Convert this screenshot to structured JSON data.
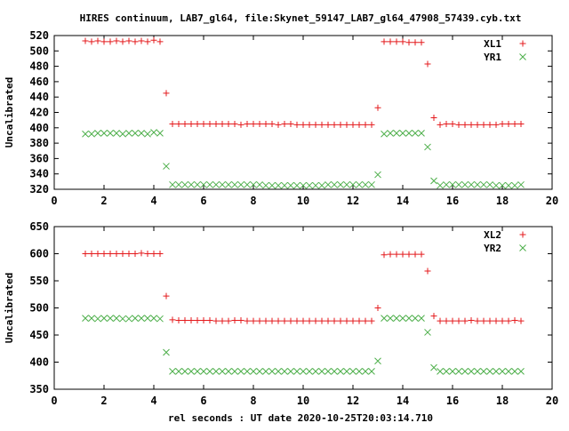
{
  "title": "HIRES continuum, LAB7_gl64, file:Skynet_59147_LAB7_gl64_47908_57439.cyb.txt",
  "xlabel": "rel seconds : UT date 2020-10-25T20:03:14.710",
  "chart_data": [
    {
      "type": "scatter",
      "ylabel": "Uncalibrated",
      "xlim": [
        0,
        20
      ],
      "ylim": [
        320,
        520
      ],
      "xticks": [
        0,
        2,
        4,
        6,
        8,
        10,
        12,
        14,
        16,
        18,
        20
      ],
      "yticks": [
        320,
        340,
        360,
        380,
        400,
        420,
        440,
        460,
        480,
        500,
        520
      ],
      "legend_position": "top-right",
      "series": [
        {
          "name": "XL1",
          "marker": "plus",
          "color": "#e41a1c",
          "x": [
            1.25,
            1.5,
            1.75,
            2.0,
            2.25,
            2.5,
            2.75,
            3.0,
            3.25,
            3.5,
            3.75,
            4.0,
            4.25,
            4.5,
            4.75,
            5.0,
            5.25,
            5.5,
            5.75,
            6.0,
            6.25,
            6.5,
            6.75,
            7.0,
            7.25,
            7.5,
            7.75,
            8.0,
            8.25,
            8.5,
            8.75,
            9.0,
            9.25,
            9.5,
            9.75,
            10.0,
            10.25,
            10.5,
            10.75,
            11.0,
            11.25,
            11.5,
            11.75,
            12.0,
            12.25,
            12.5,
            12.75,
            13.0,
            13.25,
            13.5,
            13.75,
            14.0,
            14.25,
            14.5,
            14.75,
            15.0,
            15.25,
            15.5,
            15.75,
            16.0,
            16.25,
            16.5,
            16.75,
            17.0,
            17.25,
            17.5,
            17.75,
            18.0,
            18.25,
            18.5,
            18.75
          ],
          "y": [
            513,
            512,
            513,
            512,
            512,
            513,
            512,
            513,
            512,
            513,
            512,
            514,
            512,
            445,
            405,
            405,
            405,
            405,
            405,
            405,
            405,
            405,
            405,
            405,
            405,
            404,
            405,
            405,
            405,
            405,
            405,
            404,
            405,
            405,
            404,
            404,
            404,
            404,
            404,
            404,
            404,
            404,
            404,
            404,
            404,
            404,
            404,
            426,
            512,
            512,
            512,
            512,
            511,
            511,
            511,
            483,
            413,
            404,
            405,
            405,
            404,
            404,
            404,
            404,
            404,
            404,
            404,
            405,
            405,
            405,
            405
          ]
        },
        {
          "name": "YR1",
          "marker": "cross",
          "color": "#4daf4a",
          "x": [
            1.25,
            1.5,
            1.75,
            2.0,
            2.25,
            2.5,
            2.75,
            3.0,
            3.25,
            3.5,
            3.75,
            4.0,
            4.25,
            4.5,
            4.75,
            5.0,
            5.25,
            5.5,
            5.75,
            6.0,
            6.25,
            6.5,
            6.75,
            7.0,
            7.25,
            7.5,
            7.75,
            8.0,
            8.25,
            8.5,
            8.75,
            9.0,
            9.25,
            9.5,
            9.75,
            10.0,
            10.25,
            10.5,
            10.75,
            11.0,
            11.25,
            11.5,
            11.75,
            12.0,
            12.25,
            12.5,
            12.75,
            13.0,
            13.25,
            13.5,
            13.75,
            14.0,
            14.25,
            14.5,
            14.75,
            15.0,
            15.25,
            15.5,
            15.75,
            16.0,
            16.25,
            16.5,
            16.75,
            17.0,
            17.25,
            17.5,
            17.75,
            18.0,
            18.25,
            18.5,
            18.75
          ],
          "y": [
            392,
            392,
            393,
            393,
            393,
            393,
            392,
            393,
            393,
            393,
            392,
            394,
            393,
            350,
            326,
            326,
            326,
            326,
            326,
            326,
            326,
            326,
            326,
            326,
            326,
            326,
            326,
            326,
            326,
            325,
            325,
            325,
            325,
            325,
            325,
            325,
            325,
            325,
            325,
            326,
            326,
            326,
            326,
            326,
            326,
            326,
            326,
            339,
            392,
            393,
            393,
            393,
            393,
            393,
            393,
            375,
            331,
            325,
            326,
            326,
            326,
            326,
            326,
            326,
            326,
            326,
            325,
            325,
            325,
            325,
            326
          ]
        }
      ]
    },
    {
      "type": "scatter",
      "ylabel": "Uncalibrated",
      "xlim": [
        0,
        20
      ],
      "ylim": [
        350,
        650
      ],
      "xticks": [
        0,
        2,
        4,
        6,
        8,
        10,
        12,
        14,
        16,
        18,
        20
      ],
      "yticks": [
        350,
        400,
        450,
        500,
        550,
        600,
        650
      ],
      "legend_position": "top-right",
      "series": [
        {
          "name": "XL2",
          "marker": "plus",
          "color": "#e41a1c",
          "x": [
            1.25,
            1.5,
            1.75,
            2.0,
            2.25,
            2.5,
            2.75,
            3.0,
            3.25,
            3.5,
            3.75,
            4.0,
            4.25,
            4.5,
            4.75,
            5.0,
            5.25,
            5.5,
            5.75,
            6.0,
            6.25,
            6.5,
            6.75,
            7.0,
            7.25,
            7.5,
            7.75,
            8.0,
            8.25,
            8.5,
            8.75,
            9.0,
            9.25,
            9.5,
            9.75,
            10.0,
            10.25,
            10.5,
            10.75,
            11.0,
            11.25,
            11.5,
            11.75,
            12.0,
            12.25,
            12.5,
            12.75,
            13.0,
            13.25,
            13.5,
            13.75,
            14.0,
            14.25,
            14.5,
            14.75,
            15.0,
            15.25,
            15.5,
            15.75,
            16.0,
            16.25,
            16.5,
            16.75,
            17.0,
            17.25,
            17.5,
            17.75,
            18.0,
            18.25,
            18.5,
            18.75
          ],
          "y": [
            600,
            600,
            600,
            600,
            600,
            600,
            600,
            600,
            600,
            601,
            600,
            600,
            600,
            522,
            478,
            477,
            477,
            477,
            477,
            477,
            477,
            476,
            476,
            476,
            477,
            477,
            476,
            476,
            476,
            476,
            476,
            476,
            476,
            476,
            476,
            476,
            476,
            476,
            476,
            476,
            476,
            476,
            476,
            476,
            476,
            476,
            476,
            500,
            598,
            599,
            599,
            599,
            599,
            599,
            599,
            568,
            485,
            476,
            476,
            476,
            476,
            476,
            477,
            476,
            476,
            476,
            476,
            476,
            476,
            477,
            476
          ]
        },
        {
          "name": "YR2",
          "marker": "cross",
          "color": "#4daf4a",
          "x": [
            1.25,
            1.5,
            1.75,
            2.0,
            2.25,
            2.5,
            2.75,
            3.0,
            3.25,
            3.5,
            3.75,
            4.0,
            4.25,
            4.5,
            4.75,
            5.0,
            5.25,
            5.5,
            5.75,
            6.0,
            6.25,
            6.5,
            6.75,
            7.0,
            7.25,
            7.5,
            7.75,
            8.0,
            8.25,
            8.5,
            8.75,
            9.0,
            9.25,
            9.5,
            9.75,
            10.0,
            10.25,
            10.5,
            10.75,
            11.0,
            11.25,
            11.5,
            11.75,
            12.0,
            12.25,
            12.5,
            12.75,
            13.0,
            13.25,
            13.5,
            13.75,
            14.0,
            14.25,
            14.5,
            14.75,
            15.0,
            15.25,
            15.5,
            15.75,
            16.0,
            16.25,
            16.5,
            16.75,
            17.0,
            17.25,
            17.5,
            17.75,
            18.0,
            18.25,
            18.5,
            18.75
          ],
          "y": [
            481,
            481,
            480,
            481,
            481,
            481,
            480,
            480,
            481,
            481,
            481,
            481,
            480,
            418,
            383,
            383,
            383,
            383,
            383,
            383,
            383,
            383,
            383,
            383,
            383,
            383,
            383,
            383,
            383,
            383,
            383,
            383,
            383,
            383,
            383,
            383,
            383,
            383,
            383,
            383,
            383,
            383,
            383,
            383,
            383,
            383,
            383,
            402,
            481,
            481,
            481,
            481,
            481,
            481,
            481,
            455,
            390,
            383,
            383,
            383,
            383,
            383,
            383,
            383,
            383,
            383,
            383,
            383,
            383,
            383,
            383
          ]
        }
      ]
    }
  ]
}
